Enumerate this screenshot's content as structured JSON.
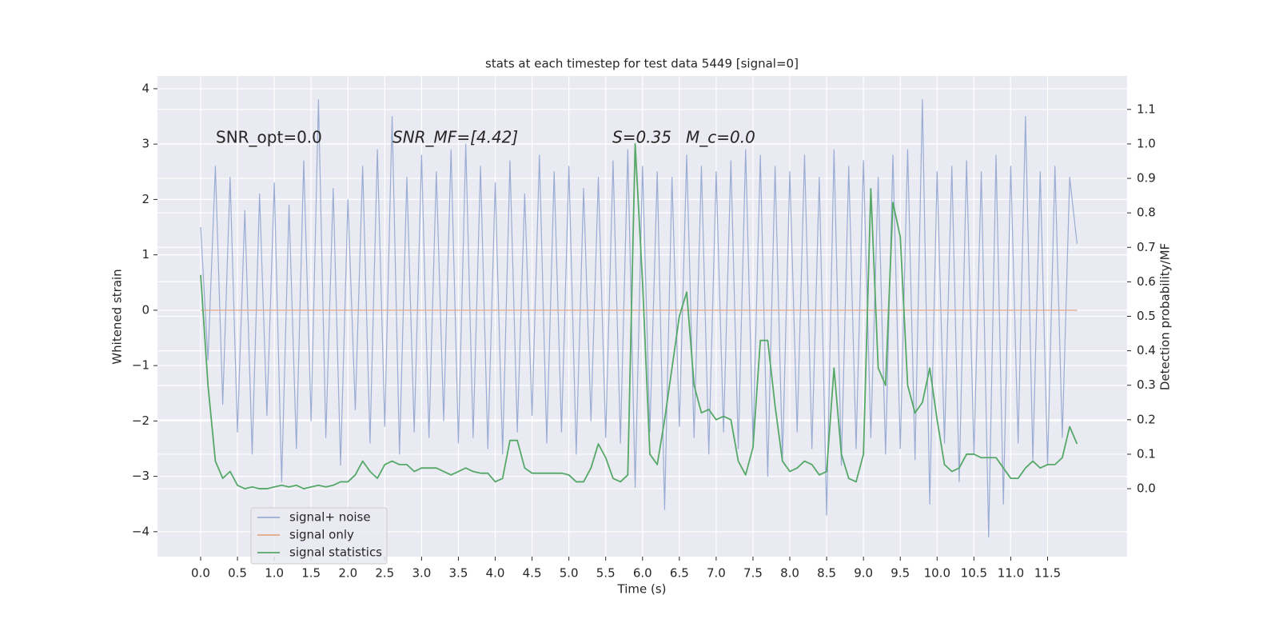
{
  "chart_data": {
    "type": "line",
    "title": "stats at each timestep for test data 5449 [signal=0]",
    "xlabel": "Time (s)",
    "ylabel": "Whitened strain",
    "y2label": "Detection probability/MF",
    "annotations": [
      "SNR_opt=0.0",
      "SNR_MF=[4.42]",
      "S=0.35",
      "M_c=0.0"
    ],
    "xlim": [
      -0.586,
      12.58
    ],
    "ylim": [
      -4.45,
      4.23
    ],
    "y2lim": [
      -0.197,
      1.197
    ],
    "xticks": [
      {
        "value": 0,
        "label": "0.0"
      },
      0.5,
      {
        "value": 1,
        "label": "1.0"
      },
      1.5,
      {
        "value": 2,
        "label": "2.0"
      },
      2.5,
      {
        "value": 3,
        "label": "3.0"
      },
      3.5,
      {
        "value": 4,
        "label": "4.0"
      },
      4.5,
      {
        "value": 5,
        "label": "5.0"
      },
      5.5,
      {
        "value": 6,
        "label": "6.0"
      },
      6.5,
      {
        "value": 7,
        "label": "7.0"
      },
      7.5,
      {
        "value": 8,
        "label": "8.0"
      },
      8.5,
      {
        "value": 9,
        "label": "9.0"
      },
      9.5,
      {
        "value": 10,
        "label": "10.0"
      },
      10.5,
      {
        "value": 11,
        "label": "11.0"
      },
      11.5
    ],
    "yticks": [
      {
        "value": -4,
        "label": "−4"
      },
      {
        "value": -3,
        "label": "−3"
      },
      {
        "value": -2,
        "label": "−2"
      },
      {
        "value": -1,
        "label": "−1"
      },
      0,
      1,
      2,
      3,
      4
    ],
    "y2ticks": [
      {
        "value": 0,
        "label": "0.0"
      },
      0.1,
      0.2,
      0.3,
      0.4,
      0.5,
      0.6,
      0.7,
      0.8,
      0.9,
      {
        "value": 1,
        "label": "1.0"
      },
      1.1
    ],
    "grid": true,
    "legend": "lower left",
    "x": [
      0.0,
      0.1,
      0.2,
      0.3,
      0.4,
      0.5,
      0.6,
      0.7,
      0.8,
      0.9,
      1.0,
      1.1,
      1.2,
      1.3,
      1.4,
      1.5,
      1.6,
      1.7,
      1.8,
      1.9,
      2.0,
      2.1,
      2.2,
      2.3,
      2.4,
      2.5,
      2.6,
      2.7,
      2.8,
      2.9,
      3.0,
      3.1,
      3.2,
      3.3,
      3.4,
      3.5,
      3.6,
      3.7,
      3.8,
      3.9,
      4.0,
      4.1,
      4.2,
      4.3,
      4.4,
      4.5,
      4.6,
      4.7,
      4.8,
      4.9,
      5.0,
      5.1,
      5.2,
      5.3,
      5.4,
      5.5,
      5.6,
      5.7,
      5.8,
      5.9,
      6.0,
      6.1,
      6.2,
      6.3,
      6.4,
      6.5,
      6.6,
      6.7,
      6.8,
      6.9,
      7.0,
      7.1,
      7.2,
      7.3,
      7.4,
      7.5,
      7.6,
      7.7,
      7.8,
      7.9,
      8.0,
      8.1,
      8.2,
      8.3,
      8.4,
      8.5,
      8.6,
      8.7,
      8.8,
      8.9,
      9.0,
      9.1,
      9.2,
      9.3,
      9.4,
      9.5,
      9.6,
      9.7,
      9.8,
      9.9,
      10.0,
      10.1,
      10.2,
      10.3,
      10.4,
      10.5,
      10.6,
      10.7,
      10.8,
      10.9,
      11.0,
      11.1,
      11.2,
      11.3,
      11.4,
      11.5,
      11.6,
      11.7,
      11.8,
      11.9
    ],
    "series": [
      {
        "name": "signal+ noise",
        "color": "#9aacd2",
        "values": [
          1.5,
          -0.9,
          2.6,
          -1.7,
          2.4,
          -2.2,
          1.8,
          -2.6,
          2.1,
          -1.9,
          2.3,
          -3.1,
          1.9,
          -2.5,
          2.7,
          -2.0,
          3.8,
          -2.3,
          2.2,
          -2.8,
          2.0,
          -1.8,
          2.6,
          -2.4,
          2.9,
          -2.1,
          3.5,
          -2.6,
          2.4,
          -2.2,
          2.8,
          -2.3,
          2.5,
          -2.0,
          2.9,
          -2.4,
          3.0,
          -2.3,
          2.6,
          -2.5,
          2.3,
          -2.6,
          2.7,
          -2.2,
          2.1,
          -1.9,
          2.8,
          -2.4,
          2.5,
          -2.2,
          2.6,
          -2.6,
          2.2,
          -2.0,
          2.4,
          -2.3,
          2.7,
          -2.4,
          2.9,
          -3.2,
          2.6,
          -2.2,
          2.5,
          -3.6,
          2.4,
          -2.1,
          2.8,
          -2.3,
          2.6,
          -2.6,
          2.5,
          -2.2,
          2.7,
          -2.5,
          2.9,
          -2.4,
          2.8,
          -3.0,
          2.6,
          -2.7,
          2.5,
          -2.2,
          2.8,
          -2.5,
          2.4,
          -3.7,
          2.9,
          -2.8,
          2.6,
          -2.5,
          2.7,
          -2.3,
          2.4,
          -2.6,
          2.8,
          -2.5,
          2.9,
          -2.7,
          3.8,
          -3.5,
          2.5,
          -2.4,
          2.6,
          -3.1,
          2.7,
          -2.6,
          2.5,
          -4.1,
          2.8,
          -3.5,
          2.6,
          -2.4,
          3.5,
          -2.7,
          2.5,
          -2.8,
          2.6,
          -2.3,
          2.4,
          1.2
        ]
      },
      {
        "name": "signal only",
        "color": "#e6a98a",
        "x": [
          0.0,
          11.9
        ],
        "values": [
          0,
          0
        ]
      },
      {
        "name": "signal statistics",
        "color": "#55a868",
        "axis": "y2",
        "values": [
          0.62,
          0.3,
          0.08,
          0.03,
          0.05,
          0.01,
          0.0,
          0.005,
          0.0,
          0.0,
          0.005,
          0.01,
          0.005,
          0.01,
          0.0,
          0.005,
          0.01,
          0.005,
          0.01,
          0.02,
          0.02,
          0.04,
          0.08,
          0.05,
          0.03,
          0.07,
          0.08,
          0.07,
          0.07,
          0.05,
          0.06,
          0.06,
          0.06,
          0.05,
          0.04,
          0.05,
          0.06,
          0.05,
          0.045,
          0.045,
          0.02,
          0.03,
          0.14,
          0.14,
          0.06,
          0.045,
          0.045,
          0.045,
          0.045,
          0.045,
          0.04,
          0.02,
          0.02,
          0.06,
          0.13,
          0.09,
          0.03,
          0.02,
          0.04,
          1.0,
          0.6,
          0.1,
          0.07,
          0.2,
          0.35,
          0.5,
          0.57,
          0.3,
          0.22,
          0.23,
          0.2,
          0.21,
          0.2,
          0.08,
          0.04,
          0.12,
          0.43,
          0.43,
          0.24,
          0.08,
          0.05,
          0.06,
          0.08,
          0.07,
          0.04,
          0.05,
          0.35,
          0.1,
          0.03,
          0.02,
          0.1,
          0.87,
          0.35,
          0.3,
          0.83,
          0.73,
          0.3,
          0.22,
          0.25,
          0.35,
          0.2,
          0.07,
          0.05,
          0.06,
          0.1,
          0.1,
          0.09,
          0.09,
          0.09,
          0.06,
          0.03,
          0.03,
          0.06,
          0.08,
          0.06,
          0.07,
          0.07,
          0.09,
          0.18,
          0.13
        ]
      }
    ]
  }
}
